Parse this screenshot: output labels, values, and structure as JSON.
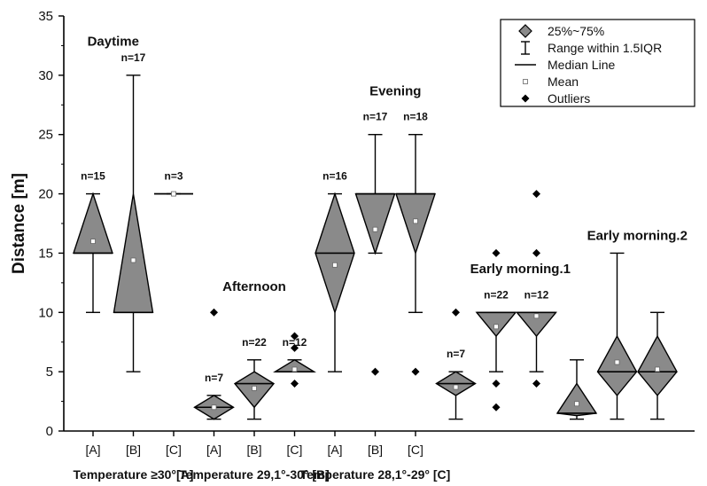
{
  "chart_data": {
    "type": "box",
    "ylabel": "Distance [m]",
    "ylim": [
      0,
      35
    ],
    "yticks": [
      0,
      5,
      10,
      15,
      20,
      25,
      30,
      35
    ],
    "legend": {
      "placement": "top-right",
      "entries": [
        "25%~75%",
        "Range within 1.5IQR",
        "Median Line",
        "Mean",
        "Outliers"
      ]
    },
    "colors": {
      "box": "#8a8a8a",
      "line": "#000000"
    },
    "groups": [
      {
        "label": "Temperature ≥30°[A]",
        "categories": [
          "[A]",
          "[B]",
          "[C]"
        ]
      },
      {
        "label": "Temperature 29,1°-30° [B]",
        "categories": [
          "[A]",
          "[B]",
          "[C]"
        ]
      },
      {
        "label": "Temperature 28,1°-29° [C]",
        "categories": [
          "[A]",
          "[B]",
          "[C]"
        ]
      }
    ],
    "period_labels": [
      "Daytime",
      "Afternoon",
      "Evening",
      "Early morning.1",
      "Early morning.2"
    ],
    "boxes": [
      {
        "category": "[A]",
        "n": "n=15",
        "whisker_low": 10,
        "q1": 15,
        "median": 15,
        "q3": 20,
        "whisker_high": 20,
        "mean": 16,
        "outliers": []
      },
      {
        "category": "[B]",
        "n": "n=17",
        "whisker_low": 5,
        "q1": 10,
        "median": 10,
        "q3": 20,
        "whisker_high": 30,
        "mean": 14.4,
        "outliers": []
      },
      {
        "category": "[C]",
        "n": "n=3",
        "whisker_low": 20,
        "q1": 20,
        "median": 20,
        "q3": 20,
        "whisker_high": 20,
        "mean": 20,
        "outliers": []
      },
      {
        "category": "[A]",
        "n": "n=7",
        "whisker_low": 1,
        "q1": 1,
        "median": 2,
        "q3": 3,
        "whisker_high": 3,
        "mean": 2,
        "outliers": [
          10
        ]
      },
      {
        "category": "[B]",
        "n": "n=22",
        "whisker_low": 1,
        "q1": 2,
        "median": 4,
        "q3": 5,
        "whisker_high": 6,
        "mean": 3.6,
        "outliers": []
      },
      {
        "category": "[C]",
        "n": "n=12",
        "whisker_low": 5,
        "q1": 5,
        "median": 5,
        "q3": 6,
        "whisker_high": 6,
        "mean": 5.2,
        "outliers": [
          4,
          8,
          7
        ]
      },
      {
        "category": "[A]",
        "n": "n=16",
        "whisker_low": 5,
        "q1": 10,
        "median": 15,
        "q3": 20,
        "whisker_high": 20,
        "mean": 14,
        "outliers": []
      },
      {
        "category": "[B]",
        "n": "n=17",
        "whisker_low": 15,
        "q1": 15,
        "median": 20,
        "q3": 20,
        "whisker_high": 25,
        "mean": 17,
        "outliers": [
          5
        ]
      },
      {
        "category": "[C]",
        "n": "n=18",
        "whisker_low": 10,
        "q1": 15,
        "median": 20,
        "q3": 20,
        "whisker_high": 25,
        "mean": 17.7,
        "outliers": [
          5
        ]
      },
      {
        "category": "[A]",
        "n": "n=7",
        "whisker_low": 1,
        "q1": 3,
        "median": 4,
        "q3": 5,
        "whisker_high": 5,
        "mean": 3.7,
        "outliers": [
          10
        ]
      },
      {
        "category": "[B]",
        "n": "n=22",
        "whisker_low": 5,
        "q1": 8,
        "median": 10,
        "q3": 10,
        "whisker_high": 10,
        "mean": 8.8,
        "outliers": [
          15,
          4,
          2
        ]
      },
      {
        "category": "[C]",
        "n": "n=12",
        "whisker_low": 5,
        "q1": 8,
        "median": 10,
        "q3": 10,
        "whisker_high": 10,
        "mean": 9.7,
        "outliers": [
          20,
          15,
          4
        ]
      },
      {
        "category": "[A]",
        "n": "",
        "whisker_low": 1,
        "q1": 1.3,
        "median": 1.5,
        "q3": 4,
        "whisker_high": 6,
        "mean": 2.3,
        "outliers": []
      },
      {
        "category": "[B]",
        "n": "",
        "whisker_low": 1,
        "q1": 3,
        "median": 5,
        "q3": 8,
        "whisker_high": 15,
        "mean": 5.8,
        "outliers": []
      },
      {
        "category": "[C]",
        "n": "",
        "whisker_low": 1,
        "q1": 3,
        "median": 5,
        "q3": 8,
        "whisker_high": 10,
        "mean": 5.2,
        "outliers": []
      }
    ]
  }
}
